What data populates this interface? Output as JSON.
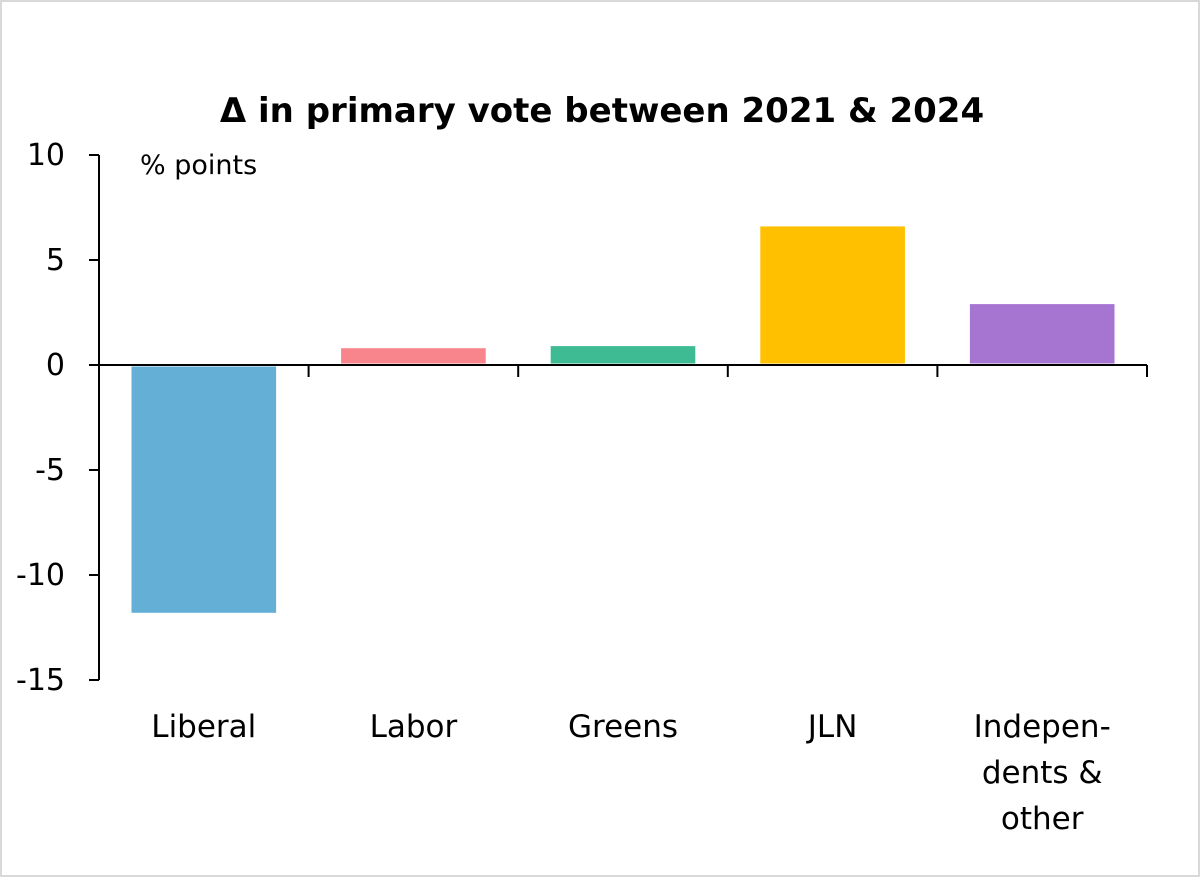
{
  "chart_data": {
    "type": "bar",
    "title": "Δ in primary vote between 2021 & 2024",
    "unit_label": "% points",
    "xlabel": "",
    "ylabel": "",
    "ylim": [
      -15,
      10
    ],
    "yticks": [
      10,
      5,
      0,
      -5,
      -10,
      -15
    ],
    "ytick_labels": [
      "10",
      "5",
      "0",
      "-5",
      "-10",
      "-15"
    ],
    "grid": false,
    "legend": "none",
    "categories": [
      "Liberal",
      "Labor",
      "Greens",
      "JLN",
      "Indepen-dents & other"
    ],
    "category_label_lines": [
      [
        "Liberal"
      ],
      [
        "Labor"
      ],
      [
        "Greens"
      ],
      [
        "JLN"
      ],
      [
        "Indepen-",
        "dents &",
        "other"
      ]
    ],
    "values": [
      -11.8,
      0.8,
      0.9,
      6.6,
      2.9
    ],
    "colors": [
      "#63afd6",
      "#f8858c",
      "#3ebb93",
      "#ffc000",
      "#a675d1"
    ]
  }
}
